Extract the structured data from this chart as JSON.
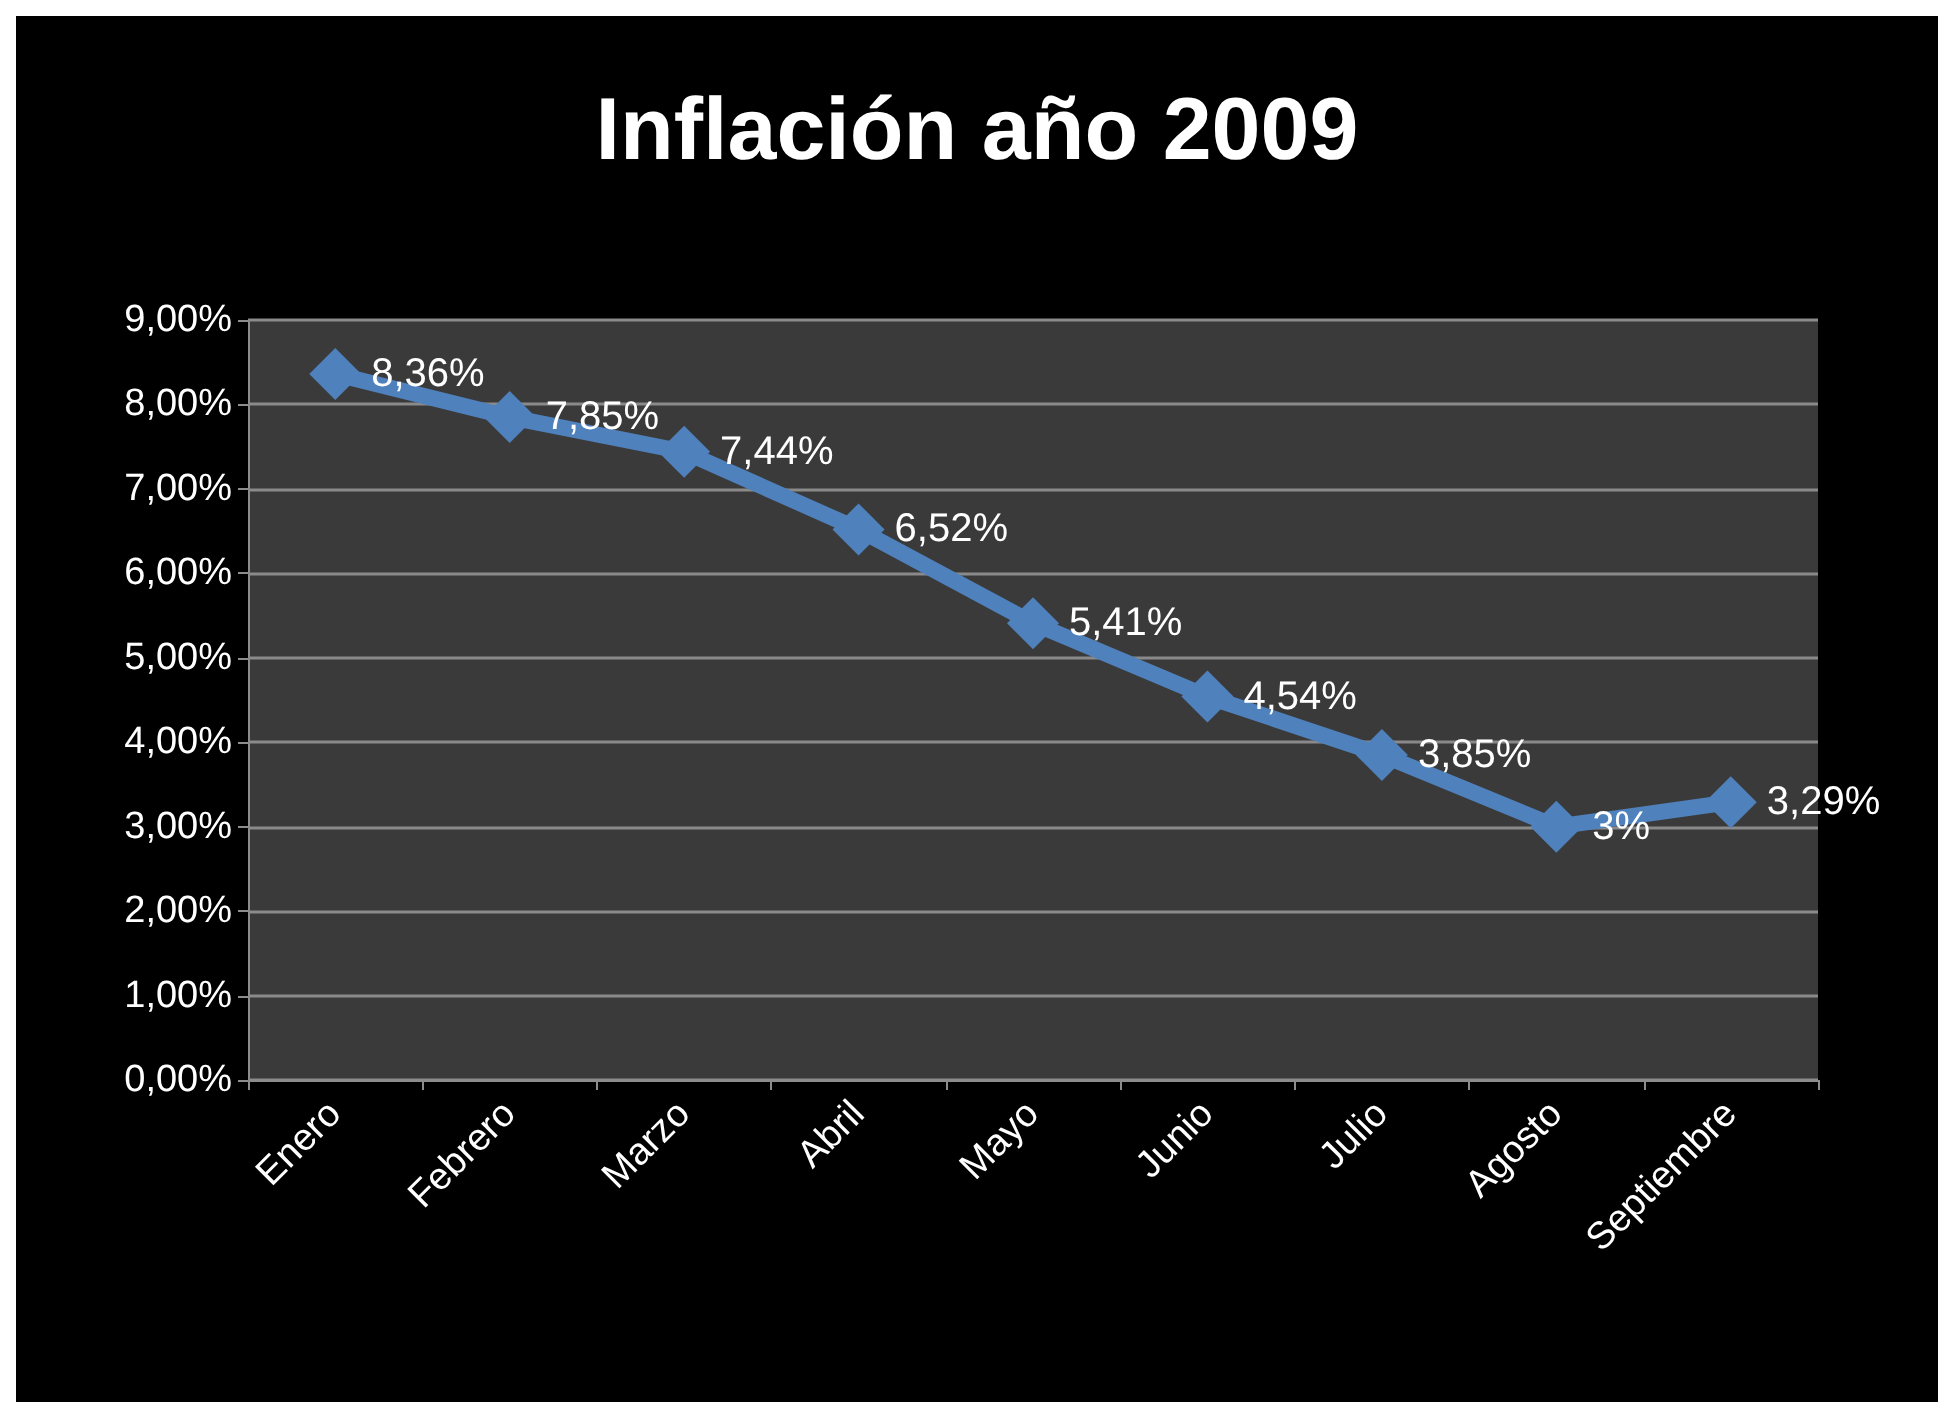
{
  "chart_data": {
    "type": "line",
    "title": "Inflación año 2009",
    "categories": [
      "Enero",
      "Febrero",
      "Marzo",
      "Abril",
      "Mayo",
      "Junio",
      "Julio",
      "Agosto",
      "Septiembre"
    ],
    "values": [
      8.36,
      7.85,
      7.44,
      6.52,
      5.41,
      4.54,
      3.85,
      3,
      3.29
    ],
    "value_labels": [
      "8,36%",
      "7,85%",
      "7,44%",
      "6,52%",
      "5,41%",
      "4,54%",
      "3,85%",
      "3%",
      "3,29%"
    ],
    "color": "#4f81bd",
    "ylim": [
      0,
      9
    ],
    "yticks": [
      {
        "value": 0,
        "label": "0,00%"
      },
      {
        "value": 1,
        "label": "1,00%"
      },
      {
        "value": 2,
        "label": "2,00%"
      },
      {
        "value": 3,
        "label": "3,00%"
      },
      {
        "value": 4,
        "label": "4,00%"
      },
      {
        "value": 5,
        "label": "5,00%"
      },
      {
        "value": 6,
        "label": "6,00%"
      },
      {
        "value": 7,
        "label": "7,00%"
      },
      {
        "value": 8,
        "label": "8,00%"
      },
      {
        "value": 9,
        "label": "9,00%"
      }
    ],
    "grid": "y",
    "marker": "diamond",
    "line_style": "solid"
  }
}
